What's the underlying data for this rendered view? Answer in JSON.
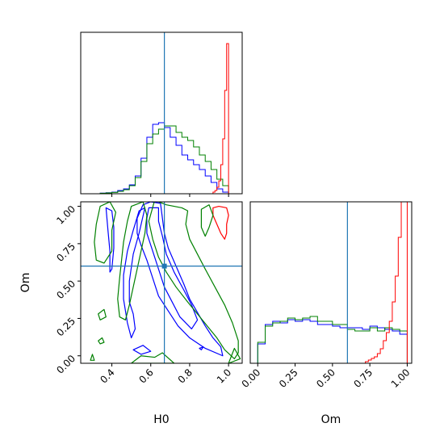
{
  "chart_data": {
    "type": "corner",
    "parameters": [
      "H0",
      "Om"
    ],
    "truths": {
      "H0": 0.67,
      "Om": 0.6
    },
    "colors": {
      "red": "#ff0000",
      "blue": "#0000ff",
      "green": "#008000",
      "truth": "#1f77b4"
    },
    "panels": {
      "h0_hist": {
        "xlim": [
          0.24,
          1.07
        ],
        "bin_edges": [
          0.34,
          0.37,
          0.4,
          0.43,
          0.46,
          0.49,
          0.52,
          0.55,
          0.58,
          0.61,
          0.64,
          0.67,
          0.7,
          0.73,
          0.76,
          0.79,
          0.82,
          0.85,
          0.88,
          0.91,
          0.94,
          0.97,
          1.0
        ],
        "series": [
          {
            "color": "blue",
            "counts": [
              0.4,
              0.6,
              1.0,
              2.0,
              3.0,
              5.5,
              11,
              22,
              35,
              43,
              44,
              41,
              35,
              30,
              24,
              21,
              18,
              15,
              11,
              7,
              3,
              1
            ]
          },
          {
            "color": "green",
            "counts": [
              0.3,
              0.5,
              0.8,
              1.5,
              2.5,
              5,
              10,
              20,
              31,
              37,
              40,
              42,
              42,
              38,
              35,
              33,
              29,
              24,
              20,
              15,
              9,
              5
            ]
          }
        ],
        "red_series": {
          "color": "red",
          "bin_edges": [
            0.92,
            0.93,
            0.94,
            0.95,
            0.96,
            0.97,
            0.98,
            0.99,
            1.0
          ],
          "counts": [
            1,
            2,
            4,
            8,
            18,
            34,
            64,
            93
          ]
        }
      },
      "om_hist": {
        "xlim": [
          -0.05,
          1.03
        ],
        "bin_edges": [
          0.0,
          0.05,
          0.1,
          0.15,
          0.2,
          0.25,
          0.3,
          0.35,
          0.4,
          0.45,
          0.5,
          0.55,
          0.6,
          0.65,
          0.7,
          0.75,
          0.8,
          0.85,
          0.9,
          0.95,
          1.0
        ],
        "series": [
          {
            "color": "blue",
            "counts": [
              12,
              24,
              26,
              25,
              27,
              26,
              27,
              26,
              24,
              24,
              23,
              22,
              22,
              22,
              21,
              23,
              22,
              21,
              20,
              18
            ]
          },
          {
            "color": "green",
            "counts": [
              13,
              23,
              25,
              26,
              28,
              27,
              28,
              29,
              26,
              26,
              24,
              24,
              21,
              20,
              20,
              22,
              20,
              22,
              21,
              20
            ]
          }
        ],
        "red_series": {
          "color": "red",
          "bin_edges": [
            0.72,
            0.74,
            0.76,
            0.78,
            0.8,
            0.82,
            0.84,
            0.86,
            0.88,
            0.9,
            0.92,
            0.94,
            0.96,
            0.98,
            1.0
          ],
          "counts": [
            1,
            2,
            3,
            4,
            6,
            9,
            14,
            19,
            26,
            38,
            54,
            78,
            108,
            138
          ]
        }
      },
      "joint": {
        "xlim": [
          0.24,
          1.07
        ],
        "ylim": [
          -0.05,
          1.03
        ],
        "contours": [
          {
            "color": "red",
            "rings": [
              [
                [
                  0.92,
                  0.99
                ],
                [
                  0.95,
                  1.0
                ],
                [
                  0.99,
                  0.99
                ],
                [
                  1.0,
                  0.94
                ],
                [
                  0.99,
                  0.88
                ],
                [
                  0.99,
                  0.82
                ],
                [
                  0.98,
                  0.78
                ],
                [
                  0.96,
                  0.82
                ],
                [
                  0.94,
                  0.88
                ],
                [
                  0.92,
                  0.94
                ]
              ]
            ]
          },
          {
            "color": "blue",
            "rings": [
              [
                [
                  0.56,
                  1.01
                ],
                [
                  0.6,
                  1.03
                ],
                [
                  0.65,
                  1.02
                ],
                [
                  0.66,
                  0.92
                ],
                [
                  0.67,
                  0.82
                ],
                [
                  0.69,
                  0.72
                ],
                [
                  0.73,
                  0.6
                ],
                [
                  0.77,
                  0.48
                ],
                [
                  0.8,
                  0.38
                ],
                [
                  0.84,
                  0.29
                ],
                [
                  0.88,
                  0.2
                ],
                [
                  0.92,
                  0.12
                ],
                [
                  0.96,
                  0.06
                ],
                [
                  0.97,
                  0.0
                ],
                [
                  0.88,
                  0.05
                ],
                [
                  0.8,
                  0.12
                ],
                [
                  0.74,
                  0.2
                ],
                [
                  0.69,
                  0.3
                ],
                [
                  0.64,
                  0.4
                ],
                [
                  0.61,
                  0.52
                ],
                [
                  0.58,
                  0.64
                ],
                [
                  0.55,
                  0.74
                ],
                [
                  0.53,
                  0.82
                ],
                [
                  0.53,
                  0.92
                ]
              ],
              [
                [
                  0.59,
                  0.99
                ],
                [
                  0.64,
                  0.99
                ],
                [
                  0.64,
                  0.9
                ],
                [
                  0.66,
                  0.8
                ],
                [
                  0.68,
                  0.68
                ],
                [
                  0.72,
                  0.56
                ],
                [
                  0.77,
                  0.44
                ],
                [
                  0.81,
                  0.34
                ],
                [
                  0.84,
                  0.24
                ],
                [
                  0.81,
                  0.18
                ],
                [
                  0.75,
                  0.26
                ],
                [
                  0.71,
                  0.36
                ],
                [
                  0.67,
                  0.46
                ],
                [
                  0.64,
                  0.58
                ],
                [
                  0.61,
                  0.7
                ],
                [
                  0.58,
                  0.82
                ],
                [
                  0.58,
                  0.92
                ]
              ],
              [
                [
                  0.54,
                  0.97
                ],
                [
                  0.57,
                  0.99
                ],
                [
                  0.54,
                  0.82
                ],
                [
                  0.51,
                  0.68
                ],
                [
                  0.49,
                  0.5
                ],
                [
                  0.49,
                  0.36
                ],
                [
                  0.51,
                  0.28
                ],
                [
                  0.52,
                  0.18
                ],
                [
                  0.5,
                  0.12
                ],
                [
                  0.48,
                  0.22
                ],
                [
                  0.46,
                  0.38
                ],
                [
                  0.46,
                  0.54
                ],
                [
                  0.48,
                  0.7
                ],
                [
                  0.51,
                  0.84
                ]
              ],
              [
                [
                  0.37,
                  0.99
                ],
                [
                  0.4,
                  0.97
                ],
                [
                  0.41,
                  0.86
                ],
                [
                  0.41,
                  0.72
                ],
                [
                  0.4,
                  0.58
                ],
                [
                  0.39,
                  0.56
                ],
                [
                  0.39,
                  0.7
                ],
                [
                  0.38,
                  0.84
                ]
              ],
              [
                [
                  0.51,
                  0.04
                ],
                [
                  0.56,
                  0.07
                ],
                [
                  0.6,
                  0.03
                ],
                [
                  0.55,
                  0.01
                ]
              ],
              [
                [
                  0.85,
                  0.05
                ],
                [
                  0.87,
                  0.06
                ],
                [
                  0.86,
                  0.04
                ]
              ]
            ]
          },
          {
            "color": "green",
            "rings": [
              [
                [
                  0.62,
                  1.04
                ],
                [
                  0.68,
                  1.01
                ],
                [
                  0.76,
                  0.99
                ],
                [
                  0.79,
                  0.97
                ],
                [
                  0.78,
                  0.88
                ],
                [
                  0.8,
                  0.78
                ],
                [
                  0.84,
                  0.68
                ],
                [
                  0.88,
                  0.58
                ],
                [
                  0.93,
                  0.46
                ],
                [
                  0.98,
                  0.34
                ],
                [
                  1.02,
                  0.22
                ],
                [
                  1.05,
                  0.1
                ],
                [
                  1.05,
                  0.02
                ],
                [
                  1.03,
                  -0.02
                ],
                [
                  0.98,
                  0.04
                ],
                [
                  0.94,
                  0.12
                ],
                [
                  0.89,
                  0.2
                ],
                [
                  0.84,
                  0.28
                ],
                [
                  0.79,
                  0.36
                ],
                [
                  0.73,
                  0.46
                ],
                [
                  0.68,
                  0.56
                ],
                [
                  0.64,
                  0.66
                ],
                [
                  0.61,
                  0.78
                ],
                [
                  0.59,
                  0.9
                ]
              ],
              [
                [
                  0.5,
                  1.0
                ],
                [
                  0.56,
                  1.03
                ],
                [
                  0.58,
                  0.94
                ],
                [
                  0.57,
                  0.82
                ],
                [
                  0.55,
                  0.7
                ],
                [
                  0.53,
                  0.58
                ],
                [
                  0.51,
                  0.46
                ],
                [
                  0.49,
                  0.34
                ],
                [
                  0.47,
                  0.24
                ],
                [
                  0.44,
                  0.26
                ],
                [
                  0.43,
                  0.38
                ],
                [
                  0.44,
                  0.52
                ],
                [
                  0.45,
                  0.64
                ],
                [
                  0.46,
                  0.76
                ],
                [
                  0.48,
                  0.9
                ]
              ],
              [
                [
                  0.34,
                  1.0
                ],
                [
                  0.39,
                  1.03
                ],
                [
                  0.42,
                  0.96
                ],
                [
                  0.4,
                  0.84
                ],
                [
                  0.4,
                  0.7
                ],
                [
                  0.36,
                  0.62
                ],
                [
                  0.32,
                  0.64
                ],
                [
                  0.31,
                  0.76
                ],
                [
                  0.32,
                  0.88
                ]
              ],
              [
                [
                  0.86,
                  0.98
                ],
                [
                  0.9,
                  1.01
                ],
                [
                  0.92,
                  0.94
                ],
                [
                  0.9,
                  0.86
                ],
                [
                  0.88,
                  0.8
                ],
                [
                  0.86,
                  0.86
                ]
              ],
              [
                [
                  0.33,
                  0.28
                ],
                [
                  0.36,
                  0.31
                ],
                [
                  0.37,
                  0.26
                ],
                [
                  0.34,
                  0.24
                ]
              ],
              [
                [
                  0.33,
                  0.1
                ],
                [
                  0.35,
                  0.12
                ],
                [
                  0.36,
                  0.09
                ],
                [
                  0.34,
                  0.08
                ]
              ],
              [
                [
                  0.29,
                  -0.03
                ],
                [
                  0.3,
                  0.01
                ],
                [
                  0.31,
                  -0.03
                ]
              ],
              [
                [
                  0.5,
                  -0.05
                ],
                [
                  0.55,
                  0.0
                ],
                [
                  0.62,
                  -0.01
                ],
                [
                  0.66,
                  0.02
                ],
                [
                  0.72,
                  -0.05
                ]
              ],
              [
                [
                  1.0,
                  -0.05
                ],
                [
                  1.03,
                  0.05
                ],
                [
                  1.06,
                  -0.02
                ]
              ]
            ]
          }
        ]
      }
    },
    "axes": {
      "h0": {
        "label": "H0",
        "ticks": [
          0.4,
          0.6,
          0.8,
          1.0
        ],
        "tick_labels": [
          "0.4",
          "0.6",
          "0.8",
          "1.0"
        ]
      },
      "om": {
        "label": "Om",
        "ticks": [
          0.0,
          0.25,
          0.5,
          0.75,
          1.0
        ],
        "tick_labels": [
          "0.00",
          "0.25",
          "0.50",
          "0.75",
          "1.00"
        ]
      }
    }
  }
}
